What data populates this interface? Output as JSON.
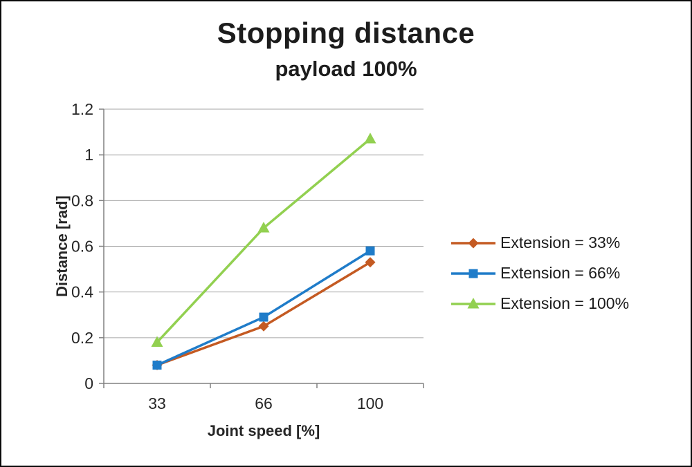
{
  "chart_data": {
    "type": "line",
    "title": "Stopping distance",
    "subtitle": "payload 100%",
    "xlabel": "Joint speed [%]",
    "ylabel": "Distance [rad]",
    "categories": [
      "33",
      "66",
      "100"
    ],
    "ylim": [
      0,
      1.2
    ],
    "ytick_step": 0.2,
    "yticks": [
      "0",
      "0.2",
      "0.4",
      "0.6",
      "0.8",
      "1",
      "1.2"
    ],
    "grid": "horizontal",
    "legend_position": "right",
    "series": [
      {
        "name": "Extension = 33%",
        "marker": "diamond",
        "color": "#C45A22",
        "values": [
          0.08,
          0.25,
          0.53
        ]
      },
      {
        "name": "Extension = 66%",
        "marker": "square",
        "color": "#1F7CC9",
        "values": [
          0.08,
          0.29,
          0.58
        ]
      },
      {
        "name": "Extension = 100%",
        "marker": "triangle",
        "color": "#92D050",
        "values": [
          0.18,
          0.68,
          1.07
        ]
      }
    ],
    "style_colors": {
      "gridline": "#A6A6A6",
      "axis": "#808080",
      "text": "#262626"
    }
  }
}
